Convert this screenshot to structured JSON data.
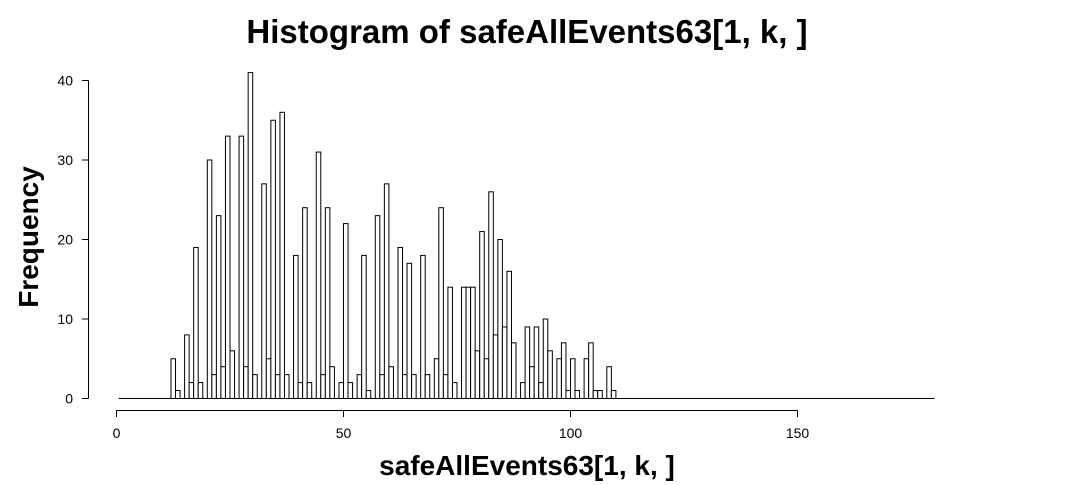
{
  "chart_data": {
    "type": "bar",
    "title": "Histogram of safeAllEvents63[1, k, ]",
    "xlabel": "safeAllEvents63[1, k, ]",
    "ylabel": "Frequency",
    "xlim": [
      0,
      180
    ],
    "ylim": [
      0,
      40
    ],
    "x_ticks": [
      0,
      50,
      100,
      150
    ],
    "y_ticks": [
      0,
      10,
      20,
      30,
      40
    ],
    "bin_start": 1,
    "bin_width": 1,
    "values": [
      0,
      0,
      0,
      0,
      0,
      0,
      0,
      0,
      0,
      0,
      0,
      5,
      1,
      0,
      8,
      2,
      19,
      2,
      0,
      30,
      3,
      23,
      4,
      33,
      6,
      0,
      33,
      4,
      41,
      3,
      0,
      27,
      5,
      35,
      3,
      36,
      3,
      0,
      18,
      2,
      24,
      2,
      0,
      31,
      3,
      24,
      4,
      0,
      2,
      22,
      2,
      0,
      3,
      18,
      1,
      0,
      23,
      3,
      27,
      4,
      0,
      19,
      3,
      17,
      3,
      0,
      18,
      3,
      0,
      5,
      24,
      3,
      14,
      2,
      0,
      14,
      14,
      14,
      6,
      21,
      5,
      26,
      8,
      20,
      9,
      16,
      7,
      0,
      2,
      9,
      4,
      9,
      2,
      10,
      6,
      0,
      5,
      7,
      1,
      5,
      1,
      0,
      5,
      7,
      1,
      1,
      0,
      4,
      1
    ],
    "grid": false,
    "legend": "none"
  }
}
